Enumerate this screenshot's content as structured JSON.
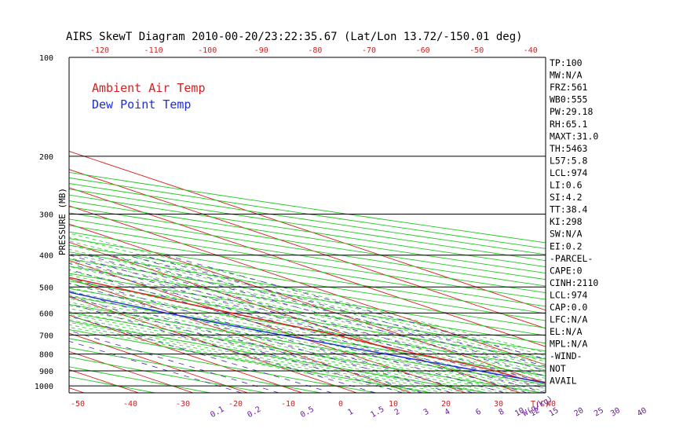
{
  "chart_data": {
    "type": "skew-t",
    "title": "AIRS SkewT Diagram 2010-00-20/23:22:35.67 (Lat/Lon 13.72/-150.01 deg)",
    "ylabel": "PRESSURE (MB)",
    "x_unit_label": "T(C)",
    "mixing_ratio_unit_label": "W(g/kg)",
    "legend": [
      {
        "name": "Ambient Air Temp",
        "color": "#d42020"
      },
      {
        "name": "Dew Point Temp",
        "color": "#1c2fd6"
      }
    ],
    "pressure_levels": [
      100,
      200,
      300,
      400,
      500,
      600,
      700,
      800,
      900,
      1000
    ],
    "top_temp_ticks": [
      -120,
      -110,
      -100,
      -90,
      -80,
      -70,
      -60,
      -50,
      -40
    ],
    "bottom_temp_ticks": [
      -50,
      -40,
      -30,
      -20,
      -10,
      0,
      10,
      20,
      30,
      40
    ],
    "mixing_ratio_ticks": [
      "0.1",
      "0.2",
      "0.5",
      "1",
      "1.5",
      "2",
      "3",
      "4",
      "6",
      "8",
      "10",
      "12",
      "15",
      "20",
      "25",
      "30",
      "40"
    ],
    "ambient_temp": [
      {
        "p": 1000,
        "t": 22.5
      },
      {
        "p": 950,
        "t": 18
      },
      {
        "p": 900,
        "t": 17.5
      },
      {
        "p": 850,
        "t": 15.5
      },
      {
        "p": 800,
        "t": 12.5
      },
      {
        "p": 750,
        "t": 10
      },
      {
        "p": 700,
        "t": 8
      },
      {
        "p": 650,
        "t": 4.5
      },
      {
        "p": 600,
        "t": 1
      },
      {
        "p": 550,
        "t": -3
      },
      {
        "p": 500,
        "t": -6.5
      },
      {
        "p": 450,
        "t": -11
      },
      {
        "p": 400,
        "t": -16
      },
      {
        "p": 350,
        "t": -23
      },
      {
        "p": 300,
        "t": -31
      },
      {
        "p": 250,
        "t": -40
      },
      {
        "p": 200,
        "t": -51
      },
      {
        "p": 175,
        "t": -57
      },
      {
        "p": 150,
        "t": -67
      },
      {
        "p": 125,
        "t": -68
      },
      {
        "p": 100,
        "t": -74
      }
    ],
    "dew_point_temp": [
      {
        "p": 1000,
        "t": 21
      },
      {
        "p": 950,
        "t": 18
      },
      {
        "p": 900,
        "t": 14.5
      },
      {
        "p": 850,
        "t": 10.5
      },
      {
        "p": 800,
        "t": 6.5
      },
      {
        "p": 750,
        "t": 2.5
      },
      {
        "p": 700,
        "t": -2
      },
      {
        "p": 650,
        "t": -6.5
      },
      {
        "p": 600,
        "t": -11
      },
      {
        "p": 550,
        "t": -15
      },
      {
        "p": 500,
        "t": -19
      },
      {
        "p": 450,
        "t": -23.5
      },
      {
        "p": 400,
        "t": -29
      },
      {
        "p": 350,
        "t": -38
      },
      {
        "p": 300,
        "t": -48
      },
      {
        "p": 250,
        "t": -60
      },
      {
        "p": 220,
        "t": -63
      },
      {
        "p": 200,
        "t": -67
      },
      {
        "p": 175,
        "t": -70
      },
      {
        "p": 150,
        "t": -75
      },
      {
        "p": 149,
        "t": -86
      },
      {
        "p": 100,
        "t": -86
      }
    ],
    "stats": [
      "TP:100",
      "MW:N/A",
      "FRZ:561",
      "WB0:555",
      "PW:29.18",
      "RH:65.1",
      "MAXT:31.0",
      "TH:5463",
      "L57:5.8",
      "LCL:974",
      "LI:0.6",
      "SI:4.2",
      "TT:38.4",
      "KI:298",
      "SW:N/A",
      "EI:0.2",
      "-PARCEL-",
      "CAPE:0",
      "CINH:2110",
      "LCL:974",
      "CAP:0.0",
      "LFC:N/A",
      "EL:N/A",
      "MPL:N/A",
      "-WIND-",
      "NOT",
      "AVAIL"
    ],
    "colors": {
      "ambient": "#d42020",
      "dewpoint": "#1c2fd6",
      "isotherm": "#d42020",
      "dry_adiabat": "#22c722",
      "moist_adiabat": "#33cc33",
      "mixing_ratio": "#4b2bb0",
      "tick_top": "#cc2020",
      "tick_bottom": "#cc2020",
      "tick_mixing": "#6a1b9a",
      "isobar": "#000000"
    },
    "grid": true,
    "legend_position": "top-left"
  }
}
